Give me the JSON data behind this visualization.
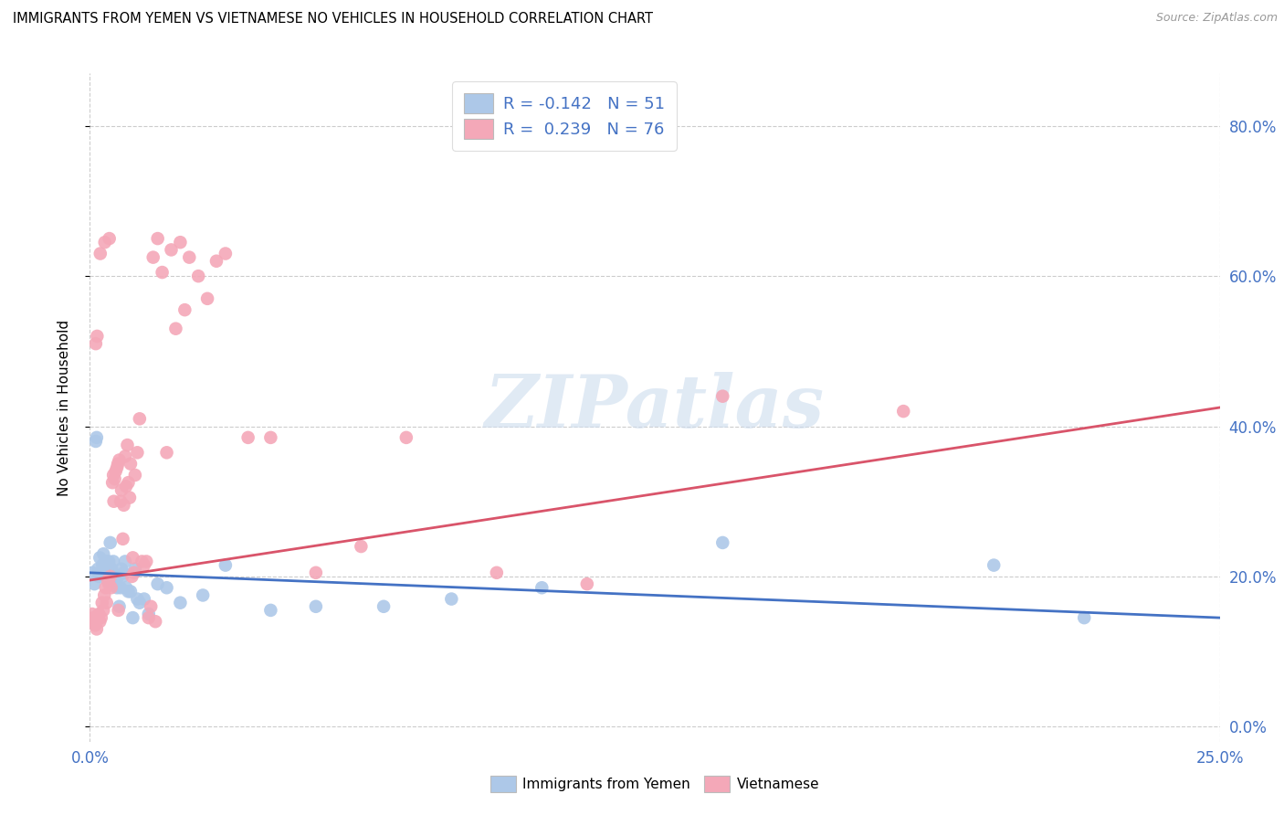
{
  "title": "IMMIGRANTS FROM YEMEN VS VIETNAMESE NO VEHICLES IN HOUSEHOLD CORRELATION CHART",
  "source": "Source: ZipAtlas.com",
  "ylabel": "No Vehicles in Household",
  "ytick_vals": [
    0.0,
    20.0,
    40.0,
    60.0,
    80.0
  ],
  "xlim": [
    0.0,
    25.0
  ],
  "ylim": [
    -2.0,
    87.0
  ],
  "legend_line1": "R = -0.142   N = 51",
  "legend_line2": "R =  0.239   N = 76",
  "color_blue": "#adc8e8",
  "color_pink": "#f4a8b8",
  "line_blue": "#4472c4",
  "line_pink": "#d9546a",
  "watermark": "ZIPatlas",
  "blue_scatter_x": [
    0.05,
    0.1,
    0.15,
    0.18,
    0.2,
    0.22,
    0.25,
    0.28,
    0.3,
    0.32,
    0.35,
    0.38,
    0.4,
    0.42,
    0.45,
    0.48,
    0.5,
    0.52,
    0.55,
    0.58,
    0.6,
    0.62,
    0.65,
    0.68,
    0.7,
    0.72,
    0.75,
    0.78,
    0.8,
    0.85,
    0.9,
    0.95,
    1.0,
    1.05,
    1.1,
    1.2,
    1.3,
    1.5,
    1.7,
    2.0,
    2.5,
    3.0,
    4.0,
    5.0,
    6.5,
    8.0,
    10.0,
    14.0,
    20.0,
    22.0,
    0.13
  ],
  "blue_scatter_y": [
    20.5,
    19.0,
    38.5,
    21.0,
    20.0,
    22.5,
    20.5,
    21.5,
    23.0,
    20.0,
    22.0,
    19.5,
    20.5,
    22.0,
    24.5,
    21.0,
    20.5,
    22.0,
    20.0,
    19.0,
    18.5,
    20.0,
    16.0,
    18.5,
    21.0,
    20.0,
    20.5,
    22.0,
    18.5,
    18.0,
    18.0,
    14.5,
    21.0,
    17.0,
    16.5,
    17.0,
    15.0,
    19.0,
    18.5,
    16.5,
    17.5,
    21.5,
    15.5,
    16.0,
    16.0,
    17.0,
    18.5,
    24.5,
    21.5,
    14.5,
    38.0
  ],
  "pink_scatter_x": [
    0.05,
    0.08,
    0.1,
    0.12,
    0.15,
    0.17,
    0.2,
    0.22,
    0.25,
    0.27,
    0.3,
    0.32,
    0.35,
    0.37,
    0.4,
    0.42,
    0.45,
    0.47,
    0.5,
    0.52,
    0.55,
    0.57,
    0.6,
    0.62,
    0.65,
    0.68,
    0.7,
    0.73,
    0.75,
    0.78,
    0.8,
    0.83,
    0.85,
    0.88,
    0.9,
    0.93,
    0.95,
    0.98,
    1.0,
    1.05,
    1.1,
    1.15,
    1.2,
    1.25,
    1.3,
    1.35,
    1.4,
    1.45,
    1.5,
    1.6,
    1.7,
    1.8,
    1.9,
    2.0,
    2.1,
    2.2,
    2.4,
    2.6,
    2.8,
    3.0,
    3.5,
    4.0,
    5.0,
    6.0,
    7.0,
    9.0,
    11.0,
    14.0,
    18.0,
    0.13,
    0.16,
    0.23,
    0.33,
    0.43,
    0.53,
    0.63
  ],
  "pink_scatter_y": [
    15.0,
    14.5,
    14.0,
    13.5,
    13.0,
    14.5,
    15.0,
    14.0,
    14.5,
    16.5,
    15.5,
    17.5,
    18.5,
    16.5,
    19.5,
    19.0,
    20.0,
    18.5,
    32.5,
    33.5,
    33.0,
    34.0,
    34.5,
    35.0,
    35.5,
    30.0,
    31.5,
    25.0,
    29.5,
    36.0,
    32.0,
    37.5,
    32.5,
    30.5,
    35.0,
    20.0,
    22.5,
    20.5,
    33.5,
    36.5,
    41.0,
    22.0,
    21.5,
    22.0,
    14.5,
    16.0,
    62.5,
    14.0,
    65.0,
    60.5,
    36.5,
    63.5,
    53.0,
    64.5,
    55.5,
    62.5,
    60.0,
    57.0,
    62.0,
    63.0,
    38.5,
    38.5,
    20.5,
    24.0,
    38.5,
    20.5,
    19.0,
    44.0,
    42.0,
    51.0,
    52.0,
    63.0,
    64.5,
    65.0,
    30.0,
    15.5
  ],
  "blue_line_x": [
    0.0,
    25.0
  ],
  "blue_line_y": [
    20.5,
    14.5
  ],
  "pink_line_x": [
    0.0,
    25.0
  ],
  "pink_line_y": [
    19.5,
    42.5
  ]
}
